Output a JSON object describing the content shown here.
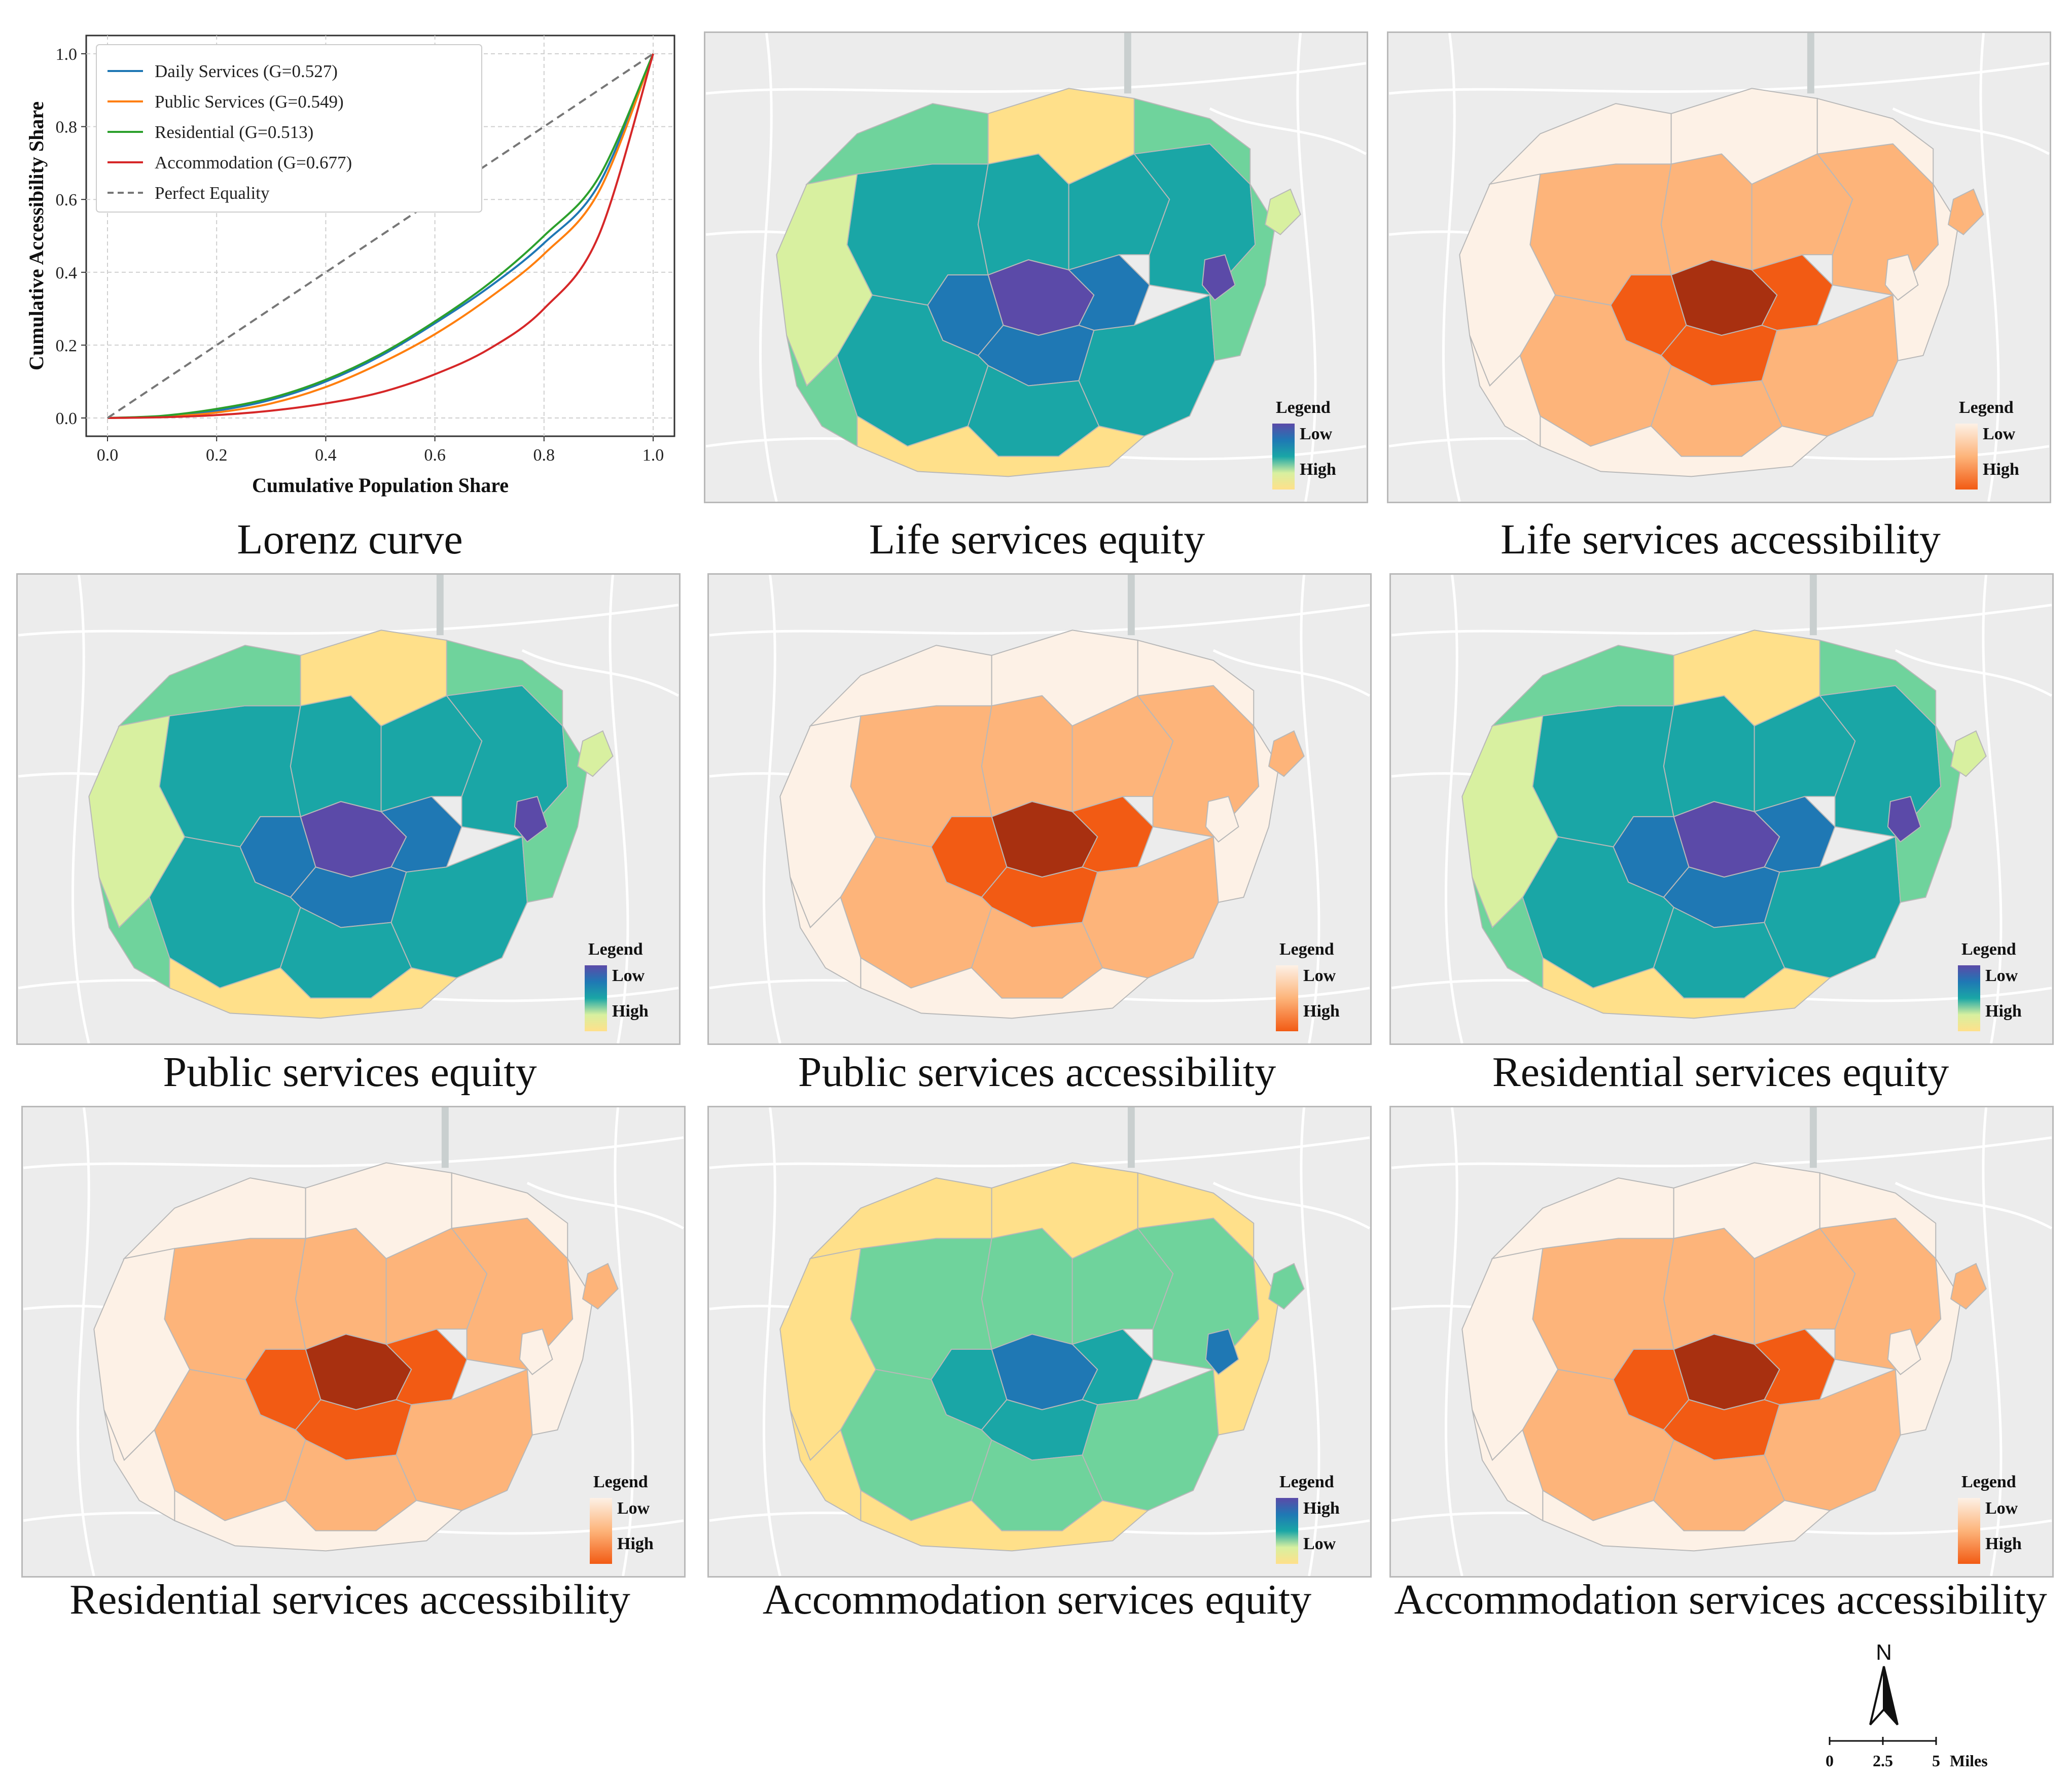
{
  "chart_data": {
    "type": "line",
    "title": "Lorenz curve",
    "xlabel": "Cumulative Population Share",
    "ylabel": "Cumulative Accessibility Share",
    "xlim": [
      0,
      1
    ],
    "ylim": [
      0,
      1
    ],
    "x_ticks": [
      "0.0",
      "0.2",
      "0.4",
      "0.6",
      "0.8",
      "1.0"
    ],
    "y_ticks": [
      "0.0",
      "0.2",
      "0.4",
      "0.6",
      "0.8",
      "1.0"
    ],
    "grid": true,
    "legend_position": "top-left",
    "series": [
      {
        "name": "Daily Services (G=0.527)",
        "color": "#1f77b4",
        "x": [
          0,
          0.1,
          0.2,
          0.3,
          0.4,
          0.5,
          0.6,
          0.7,
          0.8,
          0.9,
          1.0
        ],
        "y": [
          0,
          0.005,
          0.02,
          0.05,
          0.1,
          0.17,
          0.26,
          0.36,
          0.48,
          0.64,
          1.0
        ]
      },
      {
        "name": "Public Services (G=0.549)",
        "color": "#ff7f0e",
        "x": [
          0,
          0.1,
          0.2,
          0.3,
          0.4,
          0.5,
          0.6,
          0.7,
          0.8,
          0.9,
          1.0
        ],
        "y": [
          0,
          0.003,
          0.015,
          0.04,
          0.085,
          0.15,
          0.23,
          0.33,
          0.45,
          0.62,
          1.0
        ]
      },
      {
        "name": "Residential (G=0.513)",
        "color": "#2ca02c",
        "x": [
          0,
          0.1,
          0.2,
          0.3,
          0.4,
          0.5,
          0.6,
          0.7,
          0.8,
          0.9,
          1.0
        ],
        "y": [
          0,
          0.006,
          0.025,
          0.055,
          0.105,
          0.175,
          0.265,
          0.37,
          0.5,
          0.66,
          1.0
        ]
      },
      {
        "name": "Accommodation (G=0.677)",
        "color": "#d62728",
        "x": [
          0,
          0.1,
          0.2,
          0.3,
          0.4,
          0.5,
          0.6,
          0.7,
          0.8,
          0.9,
          1.0
        ],
        "y": [
          0,
          0.002,
          0.008,
          0.02,
          0.04,
          0.07,
          0.12,
          0.19,
          0.3,
          0.5,
          1.0
        ]
      },
      {
        "name": "Perfect Equality",
        "color": "#777777",
        "dashed": true,
        "x": [
          0,
          1
        ],
        "y": [
          0,
          1
        ]
      }
    ]
  },
  "maps": [
    {
      "caption": "Life services equity",
      "kind": "equity",
      "legend_title": "Legend",
      "low_label": "Low",
      "high_label": "High"
    },
    {
      "caption": "Life services accessibility",
      "kind": "access",
      "legend_title": "Legend",
      "low_label": "Low",
      "high_label": "High"
    },
    {
      "caption": "Public services equity",
      "kind": "equity",
      "legend_title": "Legend",
      "low_label": "Low",
      "high_label": "High"
    },
    {
      "caption": "Public services accessibility",
      "kind": "access",
      "legend_title": "Legend",
      "low_label": "Low",
      "high_label": "High"
    },
    {
      "caption": "Residential services equity",
      "kind": "equity",
      "legend_title": "Legend",
      "low_label": "Low",
      "high_label": "High"
    },
    {
      "caption": "Residential services accessibility",
      "kind": "access",
      "legend_title": "Legend",
      "low_label": "Low",
      "high_label": "High"
    },
    {
      "caption": "Accommodation services equity",
      "kind": "equity-rev",
      "legend_title": "Legend",
      "low_label": "Low",
      "high_label": "High"
    },
    {
      "caption": "Accommodation services accessibility",
      "kind": "access",
      "legend_title": "Legend",
      "low_label": "Low",
      "high_label": "High"
    }
  ],
  "lorenz_caption": "Lorenz curve",
  "north_label": "N",
  "scale": {
    "labels": [
      "0",
      "2.5",
      "5"
    ],
    "unit": "Miles"
  },
  "colors": {
    "equity_low": "#5b4aa8",
    "equity_mid1": "#1f78b4",
    "equity_mid2": "#1aa6a6",
    "equity_mid3": "#6fd39c",
    "equity_mid4": "#d8f0a0",
    "equity_high": "#ffe08a",
    "access_low": "#fdf1e6",
    "access_mid": "#fdb47a",
    "access_high": "#f25b14",
    "access_peak": "#a83010"
  }
}
